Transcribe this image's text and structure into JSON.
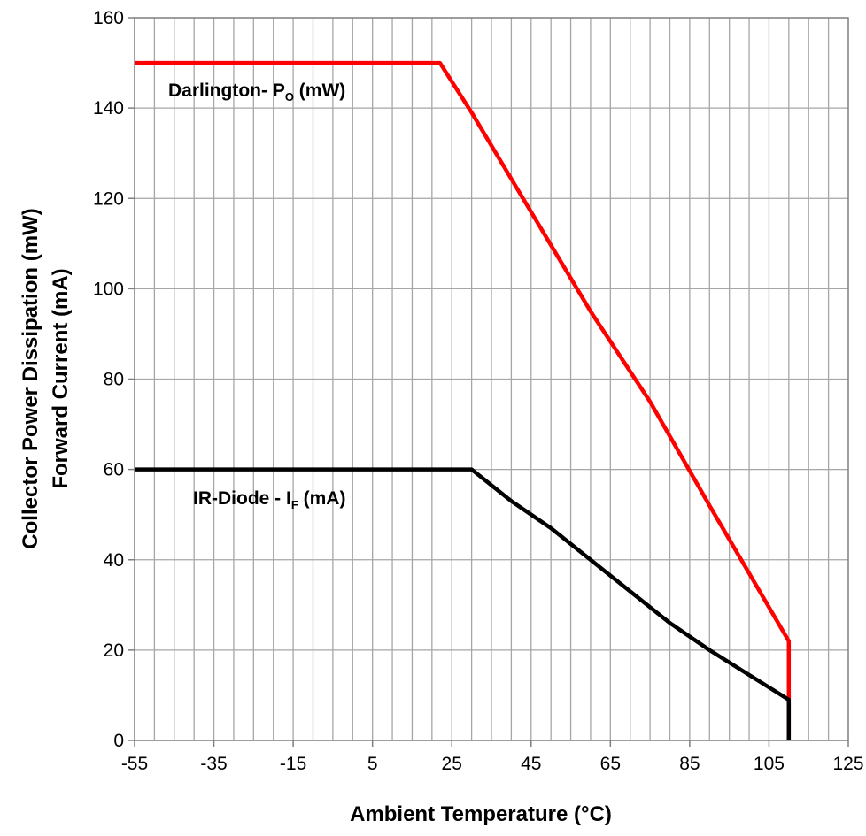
{
  "chart_data": {
    "type": "line",
    "xlabel": "Ambient Temperature (°C)",
    "ylabel_lines": [
      "Collector Power Dissipation (mW)",
      "Forward Current (mA)"
    ],
    "xlim": [
      -55,
      125
    ],
    "ylim": [
      0,
      160
    ],
    "x_ticks": [
      -55,
      -35,
      -15,
      5,
      25,
      45,
      65,
      85,
      105,
      125
    ],
    "y_ticks": [
      0,
      20,
      40,
      60,
      80,
      100,
      120,
      140,
      160
    ],
    "minor_x_step": 5,
    "grid": true,
    "series": [
      {
        "label_main": "Darlington- P",
        "label_sub": "O",
        "label_suffix": " (mW)",
        "color": "#ff0000",
        "points": [
          [
            -55,
            150
          ],
          [
            22,
            150
          ],
          [
            30,
            139
          ],
          [
            45,
            117
          ],
          [
            60,
            95
          ],
          [
            75,
            75
          ],
          [
            90,
            52
          ],
          [
            110,
            22
          ],
          [
            110,
            0
          ]
        ]
      },
      {
        "label_main": "IR-Diode - I",
        "label_sub": "F",
        "label_suffix": " (mA)",
        "color": "#000000",
        "points": [
          [
            -55,
            60
          ],
          [
            30,
            60
          ],
          [
            40,
            53
          ],
          [
            50,
            47
          ],
          [
            60,
            40
          ],
          [
            70,
            33
          ],
          [
            80,
            26
          ],
          [
            90,
            20
          ],
          [
            100,
            14.5
          ],
          [
            110,
            9
          ],
          [
            110,
            0
          ]
        ]
      }
    ]
  }
}
